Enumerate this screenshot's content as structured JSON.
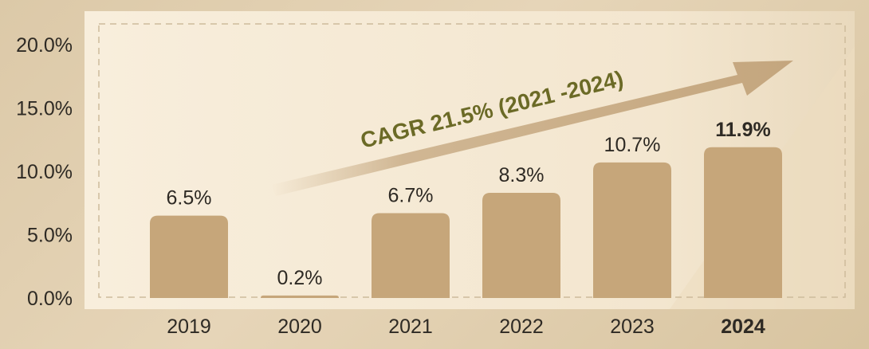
{
  "colors": {
    "bar": "#c6a67a",
    "panel": "#f6ead6",
    "arrow": "#c4a67e",
    "annotation": "#6b6a26",
    "text": "#2e2a24"
  },
  "chart_data": {
    "type": "bar",
    "categories": [
      "2019",
      "2020",
      "2021",
      "2022",
      "2023",
      "2024"
    ],
    "values": [
      6.5,
      0.2,
      6.7,
      8.3,
      10.7,
      11.9
    ],
    "value_labels": [
      "6.5%",
      "0.2%",
      "6.7%",
      "8.3%",
      "10.7%",
      "11.9%"
    ],
    "highlight_index": 5,
    "ylim": [
      0,
      20
    ],
    "yticks": [
      0,
      5,
      10,
      15,
      20
    ],
    "ytick_labels": [
      "0.0%",
      "5.0%",
      "10.0%",
      "15.0%",
      "20.0%"
    ],
    "title": "",
    "xlabel": "",
    "ylabel": "",
    "grid": false,
    "annotation": "CAGR 21.5% (2021 -2024)"
  }
}
